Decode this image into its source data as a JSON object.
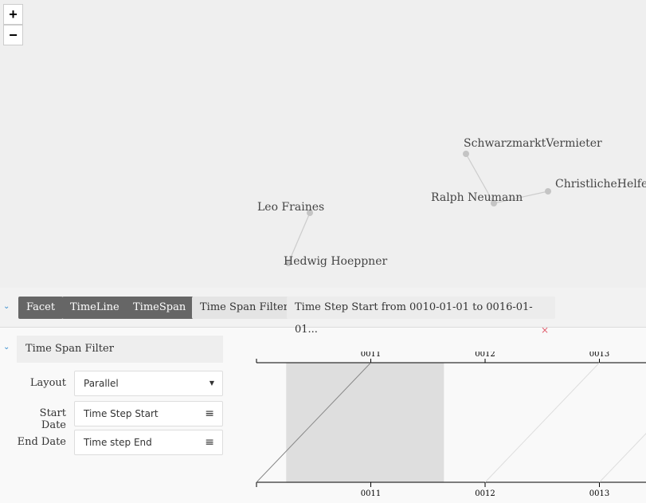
{
  "map_controls": {
    "zoom_in": "+",
    "zoom_out": "−"
  },
  "graph": {
    "nodes": [
      {
        "id": "schwarz",
        "label": "SchwarzmarktVermieter"
      },
      {
        "id": "christ",
        "label": "ChristlicheHelfer"
      },
      {
        "id": "ralph",
        "label": "Ralph Neumann"
      },
      {
        "id": "leo",
        "label": "Leo Fraines"
      },
      {
        "id": "hedwig",
        "label": "Hedwig Hoeppner"
      }
    ],
    "edges": [
      [
        "schwarz",
        "ralph"
      ],
      [
        "ralph",
        "christ"
      ],
      [
        "leo",
        "hedwig"
      ]
    ]
  },
  "filterbar": {
    "tabs": [
      "Facet",
      "TimeLine",
      "TimeSpan"
    ],
    "active": "Time Span Filter",
    "filter_text": "Time Step Start from 0010-01-01 to 0016-01-01...",
    "remove": "×"
  },
  "panel": {
    "title": "Time Span Filter",
    "layout_label": "Layout",
    "layout_value": "Parallel",
    "start_label": "Start Date",
    "start_value": "Time Step Start",
    "end_label": "End Date",
    "end_value": "Time step End"
  },
  "chart_data": {
    "type": "parallel-timeline",
    "top_ticks": [
      "0011",
      "0012",
      "0013"
    ],
    "bottom_ticks": [
      "0011",
      "0012",
      "0013"
    ],
    "brush_range": [
      "0010.26",
      "0011.64"
    ],
    "spans": [
      {
        "bottom": 10,
        "top": 11,
        "selected": true
      },
      {
        "bottom": 12,
        "top": 13,
        "selected": false
      },
      {
        "bottom": 13,
        "top": 14,
        "selected": false
      }
    ]
  }
}
